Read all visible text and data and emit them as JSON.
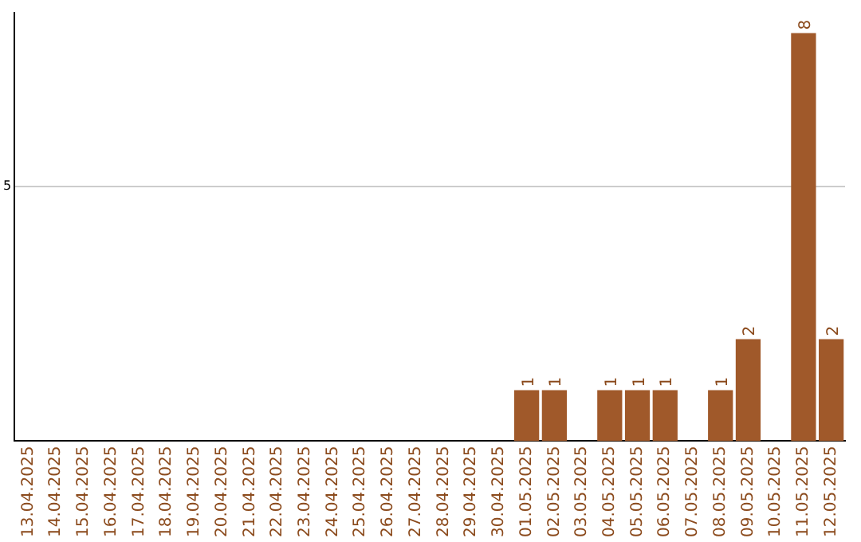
{
  "chart_data": {
    "type": "bar",
    "categories": [
      "13.04.2025",
      "14.04.2025",
      "15.04.2025",
      "16.04.2025",
      "17.04.2025",
      "18.04.2025",
      "19.04.2025",
      "20.04.2025",
      "21.04.2025",
      "22.04.2025",
      "23.04.2025",
      "24.04.2025",
      "25.04.2025",
      "26.04.2025",
      "27.04.2025",
      "28.04.2025",
      "29.04.2025",
      "30.04.2025",
      "01.05.2025",
      "02.05.2025",
      "03.05.2025",
      "04.05.2025",
      "05.05.2025",
      "06.05.2025",
      "07.05.2025",
      "08.05.2025",
      "09.05.2025",
      "10.05.2025",
      "11.05.2025",
      "12.05.2025"
    ],
    "values": [
      null,
      null,
      null,
      null,
      null,
      null,
      null,
      null,
      null,
      null,
      null,
      null,
      null,
      null,
      null,
      null,
      null,
      null,
      1,
      1,
      null,
      1,
      1,
      1,
      null,
      1,
      2,
      null,
      8,
      2
    ],
    "color": "#a0592a",
    "ylim": [
      0,
      8.4
    ],
    "yticks": [
      5
    ],
    "grid": "y",
    "legend": false,
    "data_labels": true
  }
}
